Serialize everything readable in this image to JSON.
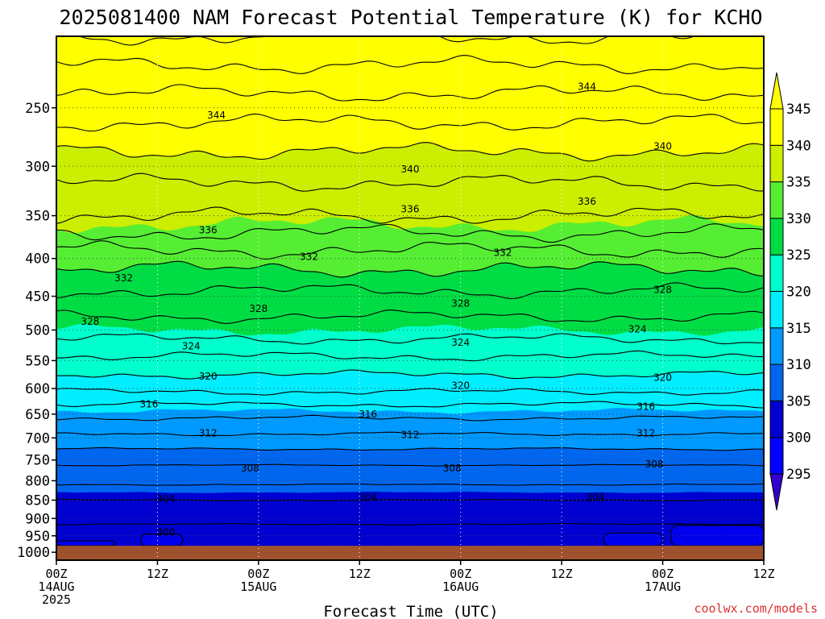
{
  "chart_data": {
    "type": "heatmap",
    "title": "2025081400 NAM Forecast Potential Temperature (K) for KCHO",
    "xlabel": "Forecast Time (UTC)",
    "ylabel": "",
    "credit": "coolwx.com/models",
    "y_scale": "log",
    "y_inverted": true,
    "ylim": [
      1025,
      200
    ],
    "y_ticks": [
      250,
      300,
      350,
      400,
      450,
      500,
      550,
      600,
      650,
      700,
      750,
      800,
      850,
      900,
      950,
      1000
    ],
    "xlim": [
      "2025-08-14T00:00Z",
      "2025-08-17T12:00Z"
    ],
    "x_ticks": [
      {
        "time": "2025-08-14T00:00Z",
        "line1": "00Z",
        "line2": "14AUG",
        "line3": "2025"
      },
      {
        "time": "2025-08-14T12:00Z",
        "line1": "12Z",
        "line2": "",
        "line3": ""
      },
      {
        "time": "2025-08-15T00:00Z",
        "line1": "00Z",
        "line2": "15AUG",
        "line3": ""
      },
      {
        "time": "2025-08-15T12:00Z",
        "line1": "12Z",
        "line2": "",
        "line3": ""
      },
      {
        "time": "2025-08-16T00:00Z",
        "line1": "00Z",
        "line2": "16AUG",
        "line3": ""
      },
      {
        "time": "2025-08-16T12:00Z",
        "line1": "12Z",
        "line2": "",
        "line3": ""
      },
      {
        "time": "2025-08-17T00:00Z",
        "line1": "00Z",
        "line2": "17AUG",
        "line3": ""
      },
      {
        "time": "2025-08-17T12:00Z",
        "line1": "12Z",
        "line2": "",
        "line3": ""
      }
    ],
    "grid": true,
    "ground_level_hpa": 980,
    "colorbar": {
      "levels": [
        295,
        300,
        305,
        310,
        315,
        320,
        325,
        330,
        335,
        340,
        345
      ],
      "colors": [
        "#0000ff",
        "#0000d0",
        "#0033dd",
        "#0066ee",
        "#0099ff",
        "#00ccff",
        "#00eeff",
        "#00ffcc",
        "#33ee88",
        "#00dd44",
        "#55ee33",
        "#99ee22",
        "#ccee00",
        "#ffff00"
      ],
      "below_color": "#3300cc",
      "above_color": "#ffff00",
      "extend": "both"
    },
    "contour_interval": 2,
    "fill_interval": 5,
    "contour_labels": [
      {
        "value": 344,
        "time": "2025-08-14T19:00Z",
        "p": 256
      },
      {
        "value": 344,
        "time": "2025-08-16T15:00Z",
        "p": 234
      },
      {
        "value": 340,
        "time": "2025-08-17T00:00Z",
        "p": 282
      },
      {
        "value": 340,
        "time": "2025-08-15T18:00Z",
        "p": 303
      },
      {
        "value": 336,
        "time": "2025-08-14T18:00Z",
        "p": 366
      },
      {
        "value": 336,
        "time": "2025-08-15T18:00Z",
        "p": 343
      },
      {
        "value": 336,
        "time": "2025-08-16T15:00Z",
        "p": 335
      },
      {
        "value": 332,
        "time": "2025-08-14T08:00Z",
        "p": 425
      },
      {
        "value": 332,
        "time": "2025-08-15T06:00Z",
        "p": 398
      },
      {
        "value": 332,
        "time": "2025-08-16T05:00Z",
        "p": 393
      },
      {
        "value": 328,
        "time": "2025-08-14T04:00Z",
        "p": 487
      },
      {
        "value": 328,
        "time": "2025-08-15T00:00Z",
        "p": 468
      },
      {
        "value": 328,
        "time": "2025-08-16T00:00Z",
        "p": 460
      },
      {
        "value": 328,
        "time": "2025-08-17T00:00Z",
        "p": 441
      },
      {
        "value": 324,
        "time": "2025-08-14T16:00Z",
        "p": 526
      },
      {
        "value": 324,
        "time": "2025-08-16T00:00Z",
        "p": 520
      },
      {
        "value": 324,
        "time": "2025-08-16T21:00Z",
        "p": 499
      },
      {
        "value": 320,
        "time": "2025-08-14T18:00Z",
        "p": 578
      },
      {
        "value": 320,
        "time": "2025-08-16T00:00Z",
        "p": 595
      },
      {
        "value": 320,
        "time": "2025-08-17T00:00Z",
        "p": 580
      },
      {
        "value": 316,
        "time": "2025-08-14T11:00Z",
        "p": 630
      },
      {
        "value": 316,
        "time": "2025-08-15T13:00Z",
        "p": 650
      },
      {
        "value": 316,
        "time": "2025-08-16T22:00Z",
        "p": 635
      },
      {
        "value": 312,
        "time": "2025-08-14T18:00Z",
        "p": 690
      },
      {
        "value": 312,
        "time": "2025-08-15T18:00Z",
        "p": 693
      },
      {
        "value": 312,
        "time": "2025-08-16T22:00Z",
        "p": 690
      },
      {
        "value": 308,
        "time": "2025-08-14T23:00Z",
        "p": 770
      },
      {
        "value": 308,
        "time": "2025-08-15T23:00Z",
        "p": 770
      },
      {
        "value": 308,
        "time": "2025-08-16T23:00Z",
        "p": 760
      },
      {
        "value": 304,
        "time": "2025-08-14T13:00Z",
        "p": 847
      },
      {
        "value": 304,
        "time": "2025-08-15T13:00Z",
        "p": 843
      },
      {
        "value": 304,
        "time": "2025-08-16T16:00Z",
        "p": 843
      },
      {
        "value": 300,
        "time": "2025-08-14T13:00Z",
        "p": 940
      }
    ]
  }
}
